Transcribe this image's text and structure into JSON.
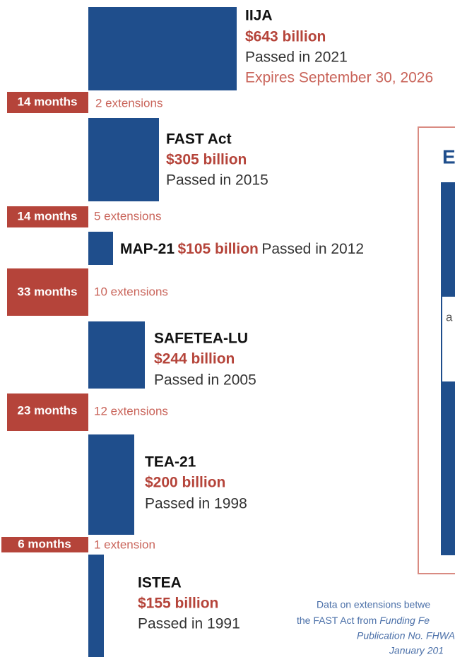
{
  "bills": [
    {
      "name": "IIJA",
      "amount": "$643 billion",
      "passed": "Passed in 2021",
      "expires": "Expires September 30, 2026"
    },
    {
      "name": "FAST Act",
      "amount": "$305 billion",
      "passed": "Passed in 2015"
    },
    {
      "name": "MAP-21",
      "amount": "$105 billion",
      "passed": "Passed in 2012"
    },
    {
      "name": "SAFETEA-LU",
      "amount": "$244 billion",
      "passed": "Passed in 2005"
    },
    {
      "name": "TEA-21",
      "amount": "$200 billion",
      "passed": "Passed in 1998"
    },
    {
      "name": "ISTEA",
      "amount": "$155 billion",
      "passed": "Passed in 1991"
    }
  ],
  "gaps": [
    {
      "duration": "14 months",
      "extensions": "2 extensions"
    },
    {
      "duration": "14 months",
      "extensions": "5 extensions"
    },
    {
      "duration": "33 months",
      "extensions": "10 extensions"
    },
    {
      "duration": "23 months",
      "extensions": "12 extensions"
    },
    {
      "duration": "6 months",
      "extensions": "1 extension"
    }
  ],
  "sidebar": {
    "title": "E",
    "text": "a"
  },
  "note": {
    "line1": "Data on extensions betwe",
    "line2": "the FAST Act from ",
    "line2_italic": "Funding Fe",
    "line3": "Publication No. FHWA-",
    "line4": "January 201"
  }
}
